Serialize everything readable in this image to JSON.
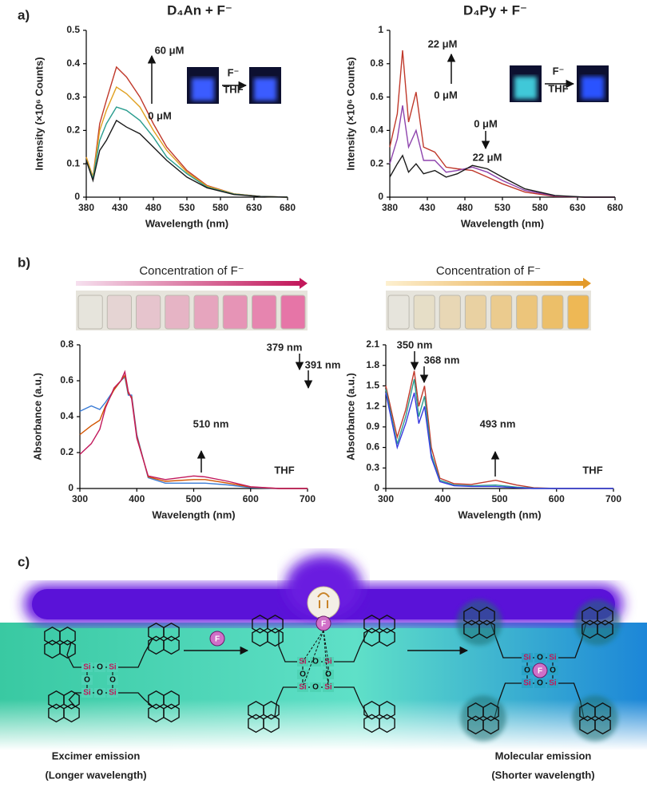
{
  "panel_labels": [
    "a)",
    "b)",
    "c)"
  ],
  "chart_data": [
    {
      "type": "line",
      "title": "D₄An + F⁻",
      "xlabel": "Wavelength (nm)",
      "ylabel": "Intensity (×10⁶ Counts)",
      "xlim": [
        380,
        680
      ],
      "ylim": [
        0,
        0.5
      ],
      "xticks": [
        380,
        430,
        480,
        530,
        580,
        630,
        680
      ],
      "yticks": [
        0,
        0.1,
        0.2,
        0.3,
        0.4,
        0.5
      ],
      "x": [
        380,
        390,
        400,
        410,
        425,
        440,
        460,
        480,
        500,
        530,
        560,
        600,
        640,
        680
      ],
      "series": [
        {
          "color": "#c0392b",
          "values": [
            0.12,
            0.06,
            0.22,
            0.29,
            0.39,
            0.36,
            0.3,
            0.22,
            0.15,
            0.08,
            0.035,
            0.01,
            0.002,
            0
          ]
        },
        {
          "color": "#e0a020",
          "values": [
            0.12,
            0.06,
            0.2,
            0.26,
            0.33,
            0.31,
            0.27,
            0.2,
            0.14,
            0.075,
            0.033,
            0.01,
            0.002,
            0
          ]
        },
        {
          "color": "#2a9d8f",
          "values": [
            0.11,
            0.055,
            0.17,
            0.22,
            0.27,
            0.26,
            0.23,
            0.18,
            0.12,
            0.07,
            0.03,
            0.009,
            0.002,
            0
          ]
        },
        {
          "color": "#1a1a1a",
          "values": [
            0.11,
            0.05,
            0.14,
            0.17,
            0.23,
            0.21,
            0.19,
            0.15,
            0.11,
            0.06,
            0.028,
            0.008,
            0.002,
            0
          ]
        }
      ],
      "annotations": [
        "60 μM",
        "0 μM",
        "F⁻",
        "THF"
      ]
    },
    {
      "type": "line",
      "title": "D₄Py + F⁻",
      "xlabel": "Wavelength (nm)",
      "ylabel": "Intensity (×10⁶ Counts)",
      "xlim": [
        380,
        680
      ],
      "ylim": [
        0,
        1
      ],
      "xticks": [
        380,
        430,
        480,
        530,
        580,
        630,
        680
      ],
      "yticks": [
        0,
        0.2,
        0.4,
        0.6,
        0.8,
        1
      ],
      "x": [
        380,
        390,
        397,
        405,
        415,
        425,
        440,
        455,
        470,
        490,
        510,
        530,
        560,
        600,
        640,
        680
      ],
      "series": [
        {
          "color": "#c0392b",
          "values": [
            0.3,
            0.5,
            0.88,
            0.45,
            0.63,
            0.3,
            0.27,
            0.18,
            0.17,
            0.16,
            0.12,
            0.08,
            0.03,
            0.005,
            0,
            0
          ]
        },
        {
          "color": "#8e44ad",
          "values": [
            0.2,
            0.35,
            0.55,
            0.3,
            0.4,
            0.22,
            0.22,
            0.15,
            0.16,
            0.18,
            0.15,
            0.1,
            0.04,
            0.007,
            0,
            0
          ]
        },
        {
          "color": "#1a1a1a",
          "values": [
            0.12,
            0.2,
            0.25,
            0.15,
            0.2,
            0.14,
            0.16,
            0.12,
            0.14,
            0.19,
            0.17,
            0.12,
            0.05,
            0.01,
            0,
            0
          ]
        }
      ],
      "annotations": [
        "22 μM",
        "0 μM",
        "0 μM",
        "22 μM",
        "F⁻",
        "THF"
      ]
    },
    {
      "type": "line",
      "subtitle": "Concentration of F⁻",
      "xlabel": "Wavelength (nm)",
      "ylabel": "Absorbance (a.u.)",
      "xlim": [
        300,
        700
      ],
      "ylim": [
        0,
        0.8
      ],
      "xticks": [
        300,
        400,
        500,
        600,
        700
      ],
      "yticks": [
        0,
        0.2,
        0.4,
        0.6,
        0.8
      ],
      "x": [
        300,
        320,
        335,
        345,
        360,
        372,
        379,
        385,
        391,
        400,
        420,
        450,
        500,
        520,
        560,
        600,
        650,
        700
      ],
      "series": [
        {
          "color": "#3a7bd5",
          "values": [
            0.43,
            0.46,
            0.44,
            0.48,
            0.55,
            0.6,
            0.62,
            0.52,
            0.52,
            0.3,
            0.06,
            0.03,
            0.03,
            0.03,
            0.02,
            0.005,
            0,
            0
          ]
        },
        {
          "color": "#d35400",
          "values": [
            0.3,
            0.35,
            0.38,
            0.46,
            0.55,
            0.6,
            0.63,
            0.53,
            0.51,
            0.29,
            0.065,
            0.04,
            0.05,
            0.05,
            0.03,
            0.008,
            0,
            0
          ]
        },
        {
          "color": "#c2185b",
          "values": [
            0.19,
            0.25,
            0.33,
            0.45,
            0.56,
            0.6,
            0.65,
            0.54,
            0.5,
            0.28,
            0.07,
            0.05,
            0.07,
            0.065,
            0.04,
            0.01,
            0,
            0
          ]
        }
      ],
      "annotations": [
        "379 nm",
        "391 nm",
        "510 nm",
        "THF"
      ]
    },
    {
      "type": "line",
      "subtitle": "Concentration of F⁻",
      "xlabel": "Wavelength (nm)",
      "ylabel": "Absorbance (a.u.)",
      "xlim": [
        300,
        700
      ],
      "ylim": [
        0,
        2.1
      ],
      "xticks": [
        300,
        400,
        500,
        600,
        700
      ],
      "yticks": [
        0,
        0.3,
        0.6,
        0.9,
        1.2,
        1.5,
        1.8,
        2.1
      ],
      "x": [
        300,
        320,
        335,
        350,
        358,
        368,
        380,
        395,
        420,
        450,
        493,
        530,
        560,
        600,
        700
      ],
      "series": [
        {
          "color": "#c0392b",
          "values": [
            1.5,
            0.75,
            1.15,
            1.72,
            1.2,
            1.5,
            0.6,
            0.15,
            0.07,
            0.06,
            0.12,
            0.05,
            0.01,
            0,
            0
          ]
        },
        {
          "color": "#2a9d8f",
          "values": [
            1.45,
            0.65,
            1.05,
            1.6,
            1.05,
            1.35,
            0.5,
            0.12,
            0.05,
            0.04,
            0.05,
            0.02,
            0.005,
            0,
            0
          ]
        },
        {
          "color": "#3a3adf",
          "values": [
            1.4,
            0.6,
            0.95,
            1.4,
            0.95,
            1.2,
            0.45,
            0.1,
            0.04,
            0.03,
            0.03,
            0.01,
            0,
            0,
            0
          ]
        }
      ],
      "annotations": [
        "350 nm",
        "368 nm",
        "493 nm",
        "THF"
      ]
    }
  ],
  "diagram": {
    "fluoride": [
      "F",
      "F",
      "F"
    ],
    "rings": [
      [
        "Si",
        "O",
        "Si",
        "O",
        "Si",
        "O",
        "Si",
        "O"
      ],
      [
        "Si",
        "O",
        "Si",
        "O",
        "Si",
        "O",
        "Si",
        "O"
      ],
      [
        "Si",
        "O",
        "Si",
        "O",
        "Si",
        "O",
        "Si",
        "O"
      ]
    ],
    "captions": [
      "Excimer emission",
      "(Longer wavelength)",
      "Molecular emission",
      "(Shorter wavelength)"
    ]
  }
}
